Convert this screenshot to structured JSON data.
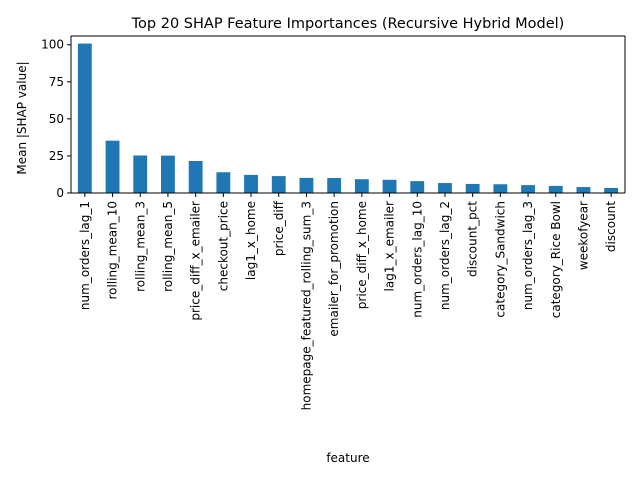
{
  "chart_data": {
    "type": "bar",
    "title": "Top 20 SHAP Feature Importances (Recursive Hybrid Model)",
    "xlabel": "feature",
    "ylabel": "Mean |SHAP value|",
    "ylim": [
      0,
      105.9
    ],
    "yticks": [
      0,
      25,
      50,
      75,
      100
    ],
    "grid": false,
    "legend": "none",
    "bar_color": "#1f77b4",
    "categories": [
      "num_orders_lag_1",
      "rolling_mean_10",
      "rolling_mean_3",
      "rolling_mean_5",
      "price_diff_x_emailer",
      "checkout_price",
      "lag1_x_home",
      "price_diff",
      "homepage_featured_rolling_sum_3",
      "emailer_for_promotion",
      "price_diff_x_home",
      "lag1_x_emailer",
      "num_orders_lag_10",
      "num_orders_lag_2",
      "discount_pct",
      "category_Sandwich",
      "num_orders_lag_3",
      "category_Rice Bowl",
      "weekofyear",
      "discount"
    ],
    "values": [
      100.8,
      35.3,
      25.3,
      25.2,
      21.6,
      14.0,
      12.2,
      11.4,
      10.2,
      10.1,
      9.3,
      8.9,
      8.0,
      6.7,
      6.1,
      5.9,
      5.3,
      4.8,
      4.0,
      3.4
    ]
  }
}
